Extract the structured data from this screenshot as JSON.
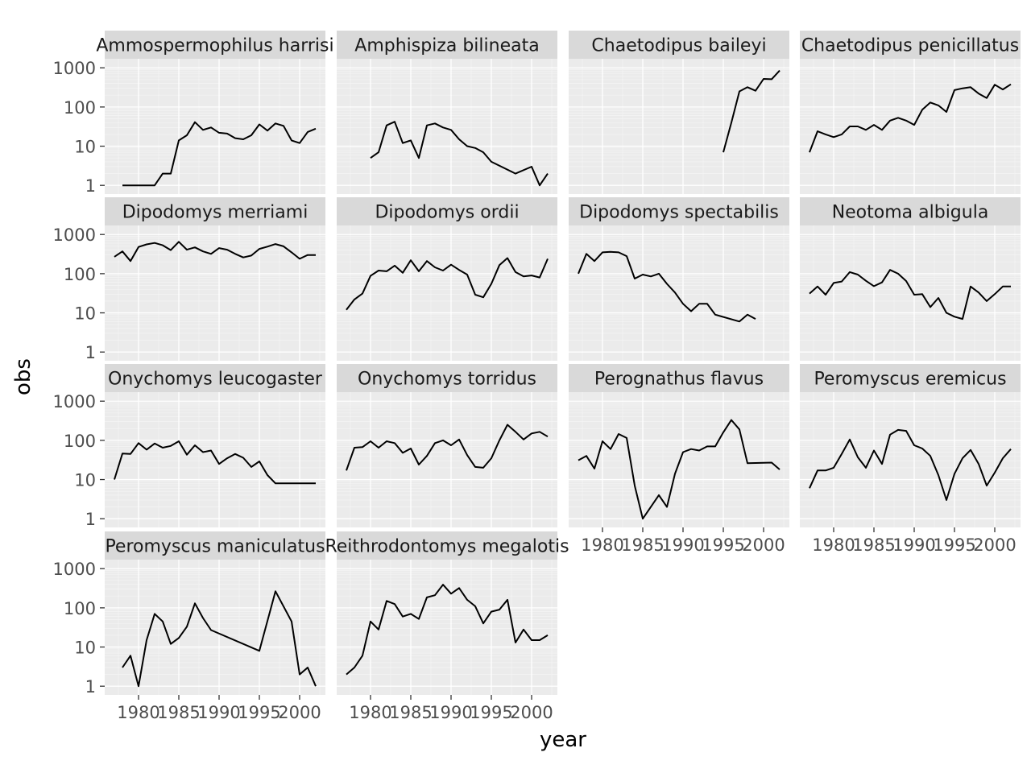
{
  "chart_data": {
    "type": "line",
    "facet_layout": "wrap",
    "xlabel": "year",
    "ylabel": "obs",
    "yscale": "log10",
    "ylim": [
      1,
      1000
    ],
    "yticks": [
      "1",
      "10",
      "100",
      "1000"
    ],
    "xlim": [
      1977,
      2002
    ],
    "xticks": [
      "1980",
      "1985",
      "1990",
      "1995",
      "2000"
    ],
    "grid": true,
    "panel_background": "#ebebeb",
    "strip_background": "#d9d9d9",
    "line_color": "#000000",
    "panels": [
      {
        "title": "Ammospermophilus harrisi",
        "x": [
          1978,
          1979,
          1980,
          1981,
          1982,
          1983,
          1984,
          1985,
          1986,
          1987,
          1988,
          1989,
          1990,
          1991,
          1992,
          1993,
          1994,
          1995,
          1996,
          1997,
          1998,
          1999,
          2000,
          2001,
          2002
        ],
        "y": [
          1,
          1,
          1,
          1,
          1,
          2,
          2,
          14,
          19,
          41,
          26,
          30,
          22,
          21,
          16,
          15,
          19,
          36,
          25,
          38,
          33,
          14,
          12,
          23,
          28
        ]
      },
      {
        "title": "Amphispiza bilineata",
        "x": [
          1980,
          1981,
          1982,
          1983,
          1984,
          1985,
          1986,
          1987,
          1988,
          1989,
          1990,
          1991,
          1992,
          1993,
          1994,
          1995,
          1998,
          2000,
          2001,
          2002
        ],
        "y": [
          5,
          7,
          34,
          42,
          12,
          14,
          5,
          34,
          38,
          30,
          26,
          15,
          10,
          9,
          7,
          4,
          2,
          3,
          1,
          2
        ]
      },
      {
        "title": "Chaetodipus baileyi",
        "x": [
          1995,
          1996,
          1997,
          1998,
          1999,
          2000,
          2001,
          2002
        ],
        "y": [
          7,
          40,
          250,
          320,
          260,
          520,
          510,
          850
        ]
      },
      {
        "title": "Chaetodipus penicillatus",
        "x": [
          1977,
          1978,
          1979,
          1980,
          1981,
          1982,
          1983,
          1984,
          1985,
          1986,
          1987,
          1988,
          1989,
          1990,
          1991,
          1992,
          1993,
          1994,
          1995,
          1996,
          1997,
          1998,
          1999,
          2000,
          2001,
          2002
        ],
        "y": [
          7,
          24,
          20,
          17,
          20,
          32,
          32,
          26,
          35,
          26,
          45,
          53,
          45,
          35,
          85,
          130,
          110,
          75,
          270,
          300,
          320,
          220,
          170,
          370,
          280,
          380
        ]
      },
      {
        "title": "Dipodomys merriami",
        "x": [
          1977,
          1978,
          1979,
          1980,
          1981,
          1982,
          1983,
          1984,
          1985,
          1986,
          1987,
          1988,
          1989,
          1990,
          1991,
          1992,
          1993,
          1994,
          1995,
          1996,
          1997,
          1998,
          1999,
          2000,
          2001,
          2002
        ],
        "y": [
          270,
          370,
          210,
          480,
          560,
          610,
          530,
          400,
          650,
          410,
          470,
          370,
          320,
          450,
          410,
          320,
          260,
          290,
          430,
          490,
          570,
          500,
          350,
          240,
          300,
          300
        ]
      },
      {
        "title": "Dipodomys ordii",
        "x": [
          1977,
          1978,
          1979,
          1980,
          1981,
          1982,
          1983,
          1984,
          1985,
          1986,
          1987,
          1988,
          1989,
          1990,
          1991,
          1992,
          1993,
          1994,
          1995,
          1996,
          1997,
          1998,
          1999,
          2000,
          2001,
          2002
        ],
        "y": [
          12,
          22,
          31,
          88,
          120,
          115,
          160,
          105,
          220,
          115,
          210,
          145,
          120,
          170,
          125,
          95,
          29,
          25,
          55,
          165,
          250,
          110,
          85,
          90,
          80,
          240
        ]
      },
      {
        "title": "Dipodomys spectabilis",
        "x": [
          1977,
          1978,
          1979,
          1980,
          1981,
          1982,
          1983,
          1984,
          1985,
          1986,
          1987,
          1988,
          1989,
          1990,
          1991,
          1992,
          1993,
          1994,
          1997,
          1998,
          1999
        ],
        "y": [
          100,
          320,
          210,
          350,
          360,
          350,
          280,
          75,
          95,
          85,
          100,
          55,
          33,
          17,
          11,
          17,
          17,
          9,
          6,
          9,
          7
        ]
      },
      {
        "title": "Neotoma albigula",
        "x": [
          1977,
          1978,
          1979,
          1980,
          1981,
          1982,
          1983,
          1984,
          1985,
          1986,
          1987,
          1988,
          1989,
          1990,
          1991,
          1992,
          1993,
          1994,
          1995,
          1996,
          1997,
          1998,
          1999,
          2000,
          2001,
          2002
        ],
        "y": [
          31,
          47,
          29,
          58,
          63,
          110,
          95,
          66,
          48,
          60,
          125,
          100,
          65,
          29,
          30,
          14,
          24,
          10,
          8,
          7,
          47,
          33,
          20,
          30,
          47,
          47
        ]
      },
      {
        "title": "Onychomys leucogaster",
        "x": [
          1977,
          1978,
          1979,
          1980,
          1981,
          1982,
          1983,
          1984,
          1985,
          1986,
          1987,
          1988,
          1989,
          1990,
          1991,
          1992,
          1993,
          1994,
          1995,
          1996,
          1997,
          2002
        ],
        "y": [
          10,
          46,
          45,
          85,
          58,
          83,
          65,
          72,
          95,
          43,
          75,
          50,
          55,
          25,
          35,
          45,
          36,
          21,
          29,
          13,
          8,
          8
        ]
      },
      {
        "title": "Onychomys torridus",
        "x": [
          1977,
          1978,
          1979,
          1980,
          1981,
          1982,
          1983,
          1984,
          1985,
          1986,
          1987,
          1988,
          1989,
          1990,
          1991,
          1992,
          1993,
          1994,
          1995,
          1996,
          1997,
          1998,
          1999,
          2000,
          2001,
          2002
        ],
        "y": [
          17,
          65,
          67,
          95,
          65,
          95,
          85,
          48,
          62,
          24,
          40,
          85,
          100,
          75,
          105,
          42,
          21,
          20,
          35,
          100,
          250,
          165,
          105,
          150,
          165,
          125
        ]
      },
      {
        "title": "Perognathus flavus",
        "x": [
          1977,
          1978,
          1979,
          1980,
          1981,
          1982,
          1983,
          1984,
          1985,
          1986,
          1987,
          1988,
          1989,
          1990,
          1991,
          1992,
          1993,
          1994,
          1995,
          1996,
          1997,
          1998,
          2001,
          2002
        ],
        "y": [
          31,
          40,
          19,
          95,
          60,
          145,
          115,
          7,
          1,
          2,
          4,
          2,
          14,
          50,
          60,
          55,
          70,
          70,
          160,
          330,
          190,
          26,
          27,
          18
        ]
      },
      {
        "title": "Peromyscus eremicus",
        "x": [
          1977,
          1978,
          1979,
          1980,
          1981,
          1982,
          1983,
          1984,
          1985,
          1986,
          1987,
          1988,
          1989,
          1990,
          1991,
          1992,
          1993,
          1994,
          1995,
          1996,
          1997,
          1998,
          1999,
          2000,
          2001,
          2002
        ],
        "y": [
          6,
          17,
          17,
          20,
          45,
          105,
          37,
          20,
          55,
          25,
          140,
          185,
          175,
          75,
          62,
          40,
          13,
          3,
          14,
          35,
          57,
          25,
          7,
          15,
          35,
          60
        ]
      },
      {
        "title": "Peromyscus maniculatus",
        "x": [
          1978,
          1979,
          1980,
          1981,
          1982,
          1983,
          1984,
          1985,
          1986,
          1987,
          1988,
          1989,
          1995,
          1997,
          1999,
          2000,
          2001,
          2002
        ],
        "y": [
          3,
          6,
          1,
          15,
          70,
          45,
          12,
          17,
          33,
          130,
          55,
          27,
          8,
          265,
          45,
          2,
          3,
          1
        ]
      },
      {
        "title": "Reithrodontomys megalotis",
        "x": [
          1977,
          1978,
          1979,
          1980,
          1981,
          1982,
          1983,
          1984,
          1985,
          1986,
          1987,
          1988,
          1989,
          1990,
          1991,
          1992,
          1993,
          1994,
          1995,
          1996,
          1997,
          1998,
          1999,
          2000,
          2001,
          2002
        ],
        "y": [
          2,
          3,
          6,
          45,
          28,
          150,
          125,
          60,
          70,
          52,
          185,
          210,
          390,
          230,
          320,
          160,
          110,
          40,
          80,
          90,
          160,
          13,
          28,
          15,
          15,
          20
        ]
      }
    ]
  }
}
